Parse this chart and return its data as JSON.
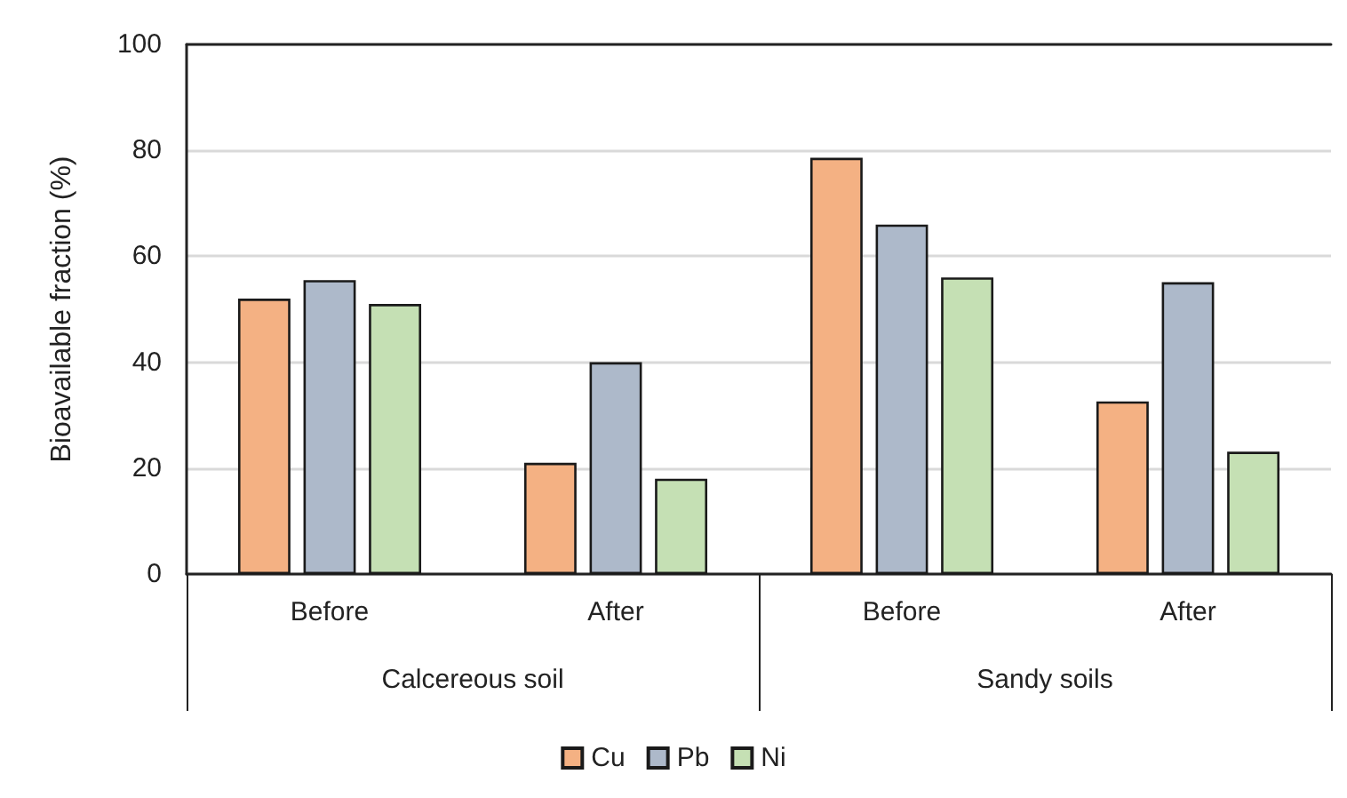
{
  "chart_data": {
    "type": "bar",
    "ylabel": "Bioavailable fraction (%)",
    "categories": [
      "Before",
      "After",
      "Before",
      "After"
    ],
    "series": [
      {
        "name": "Cu",
        "color": "#f4b183",
        "values": [
          52,
          21,
          78.6,
          32.6
        ]
      },
      {
        "name": "Pb",
        "color": "#adb9ca",
        "values": [
          55.5,
          40,
          66,
          55.1
        ]
      },
      {
        "name": "Ni",
        "color": "#c5e0b4",
        "values": [
          51,
          18,
          56,
          23.1
        ]
      }
    ],
    "ylim": [
      0,
      100
    ],
    "yticks": [
      0,
      20,
      40,
      60,
      80,
      100
    ],
    "grid": "y",
    "legend": "bottom",
    "annotations": [
      "Calcereous soil",
      "Sandy soils"
    ]
  }
}
